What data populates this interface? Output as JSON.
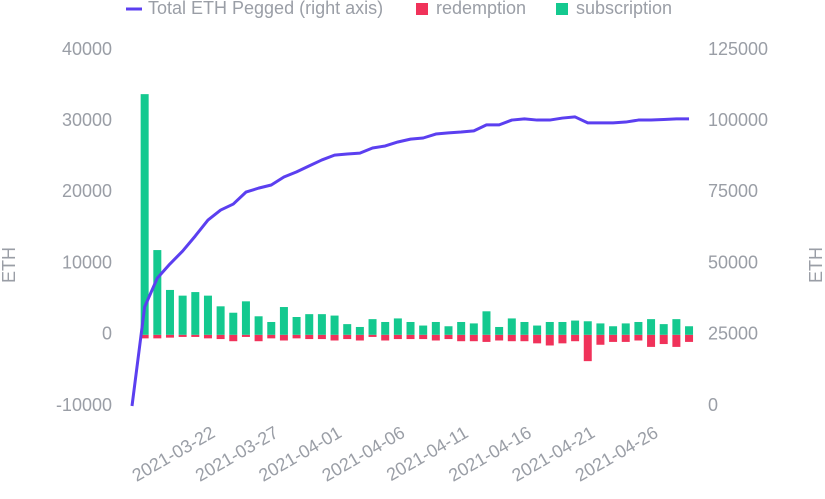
{
  "chart_data": {
    "type": "bar-line",
    "y_label": "ETH",
    "y2_label": "ETH",
    "categories": [
      null,
      null,
      null,
      null,
      null,
      null,
      "2021-03-22",
      null,
      null,
      null,
      null,
      "2021-03-27",
      null,
      null,
      null,
      null,
      "2021-04-01",
      null,
      null,
      null,
      null,
      "2021-04-06",
      null,
      null,
      null,
      null,
      "2021-04-11",
      null,
      null,
      null,
      null,
      "2021-04-16",
      null,
      null,
      null,
      null,
      "2021-04-21",
      null,
      null,
      null,
      null,
      "2021-04-26",
      null,
      null,
      null
    ],
    "series": [
      {
        "name": "Total ETH Pegged (right axis)",
        "type": "line",
        "axis": "y2",
        "color": "#5b3ff0",
        "values": [
          0,
          34800,
          44900,
          49900,
          54400,
          59700,
          65300,
          68800,
          70900,
          75100,
          76500,
          77600,
          80400,
          82200,
          84300,
          86400,
          88100,
          88500,
          88800,
          90600,
          91300,
          92700,
          93700,
          94100,
          95500,
          95900,
          96200,
          96600,
          98700,
          98700,
          100400,
          100800,
          100400,
          100400,
          101100,
          101500,
          99400,
          99400,
          99400,
          99700,
          100400,
          100400,
          100600,
          100800,
          100800
        ]
      },
      {
        "name": "redemption",
        "type": "bar",
        "color": "#f0325a",
        "values": [
          null,
          -500,
          -500,
          -400,
          -300,
          -300,
          -500,
          -600,
          -900,
          -300,
          -900,
          -500,
          -800,
          -500,
          -600,
          -600,
          -800,
          -600,
          -800,
          -300,
          -800,
          -600,
          -600,
          -600,
          -800,
          -600,
          -900,
          -900,
          -1000,
          -800,
          -900,
          -900,
          -1200,
          -1500,
          -1200,
          -900,
          -3700,
          -1400,
          -1000,
          -1000,
          -800,
          -1700,
          -1300,
          -1700,
          -1000
        ]
      },
      {
        "name": "subscription",
        "type": "bar",
        "color": "#14c98f",
        "values": [
          null,
          33800,
          11900,
          6300,
          5500,
          6000,
          5500,
          4000,
          3100,
          4700,
          2600,
          1800,
          3900,
          2500,
          2900,
          2900,
          2700,
          1500,
          1100,
          2200,
          1800,
          2300,
          1800,
          1300,
          1800,
          1200,
          1800,
          1600,
          3300,
          1100,
          2300,
          1800,
          1300,
          1800,
          1800,
          2000,
          1900,
          1600,
          1200,
          1600,
          1800,
          2200,
          1500,
          2200,
          1200
        ]
      }
    ],
    "ylim": [
      -10000,
      40000
    ],
    "yticks": [
      -10000,
      0,
      10000,
      20000,
      30000,
      40000
    ],
    "y2lim": [
      0,
      125000
    ],
    "y2ticks": [
      0,
      25000,
      50000,
      75000,
      100000,
      125000
    ],
    "legend": "top"
  }
}
